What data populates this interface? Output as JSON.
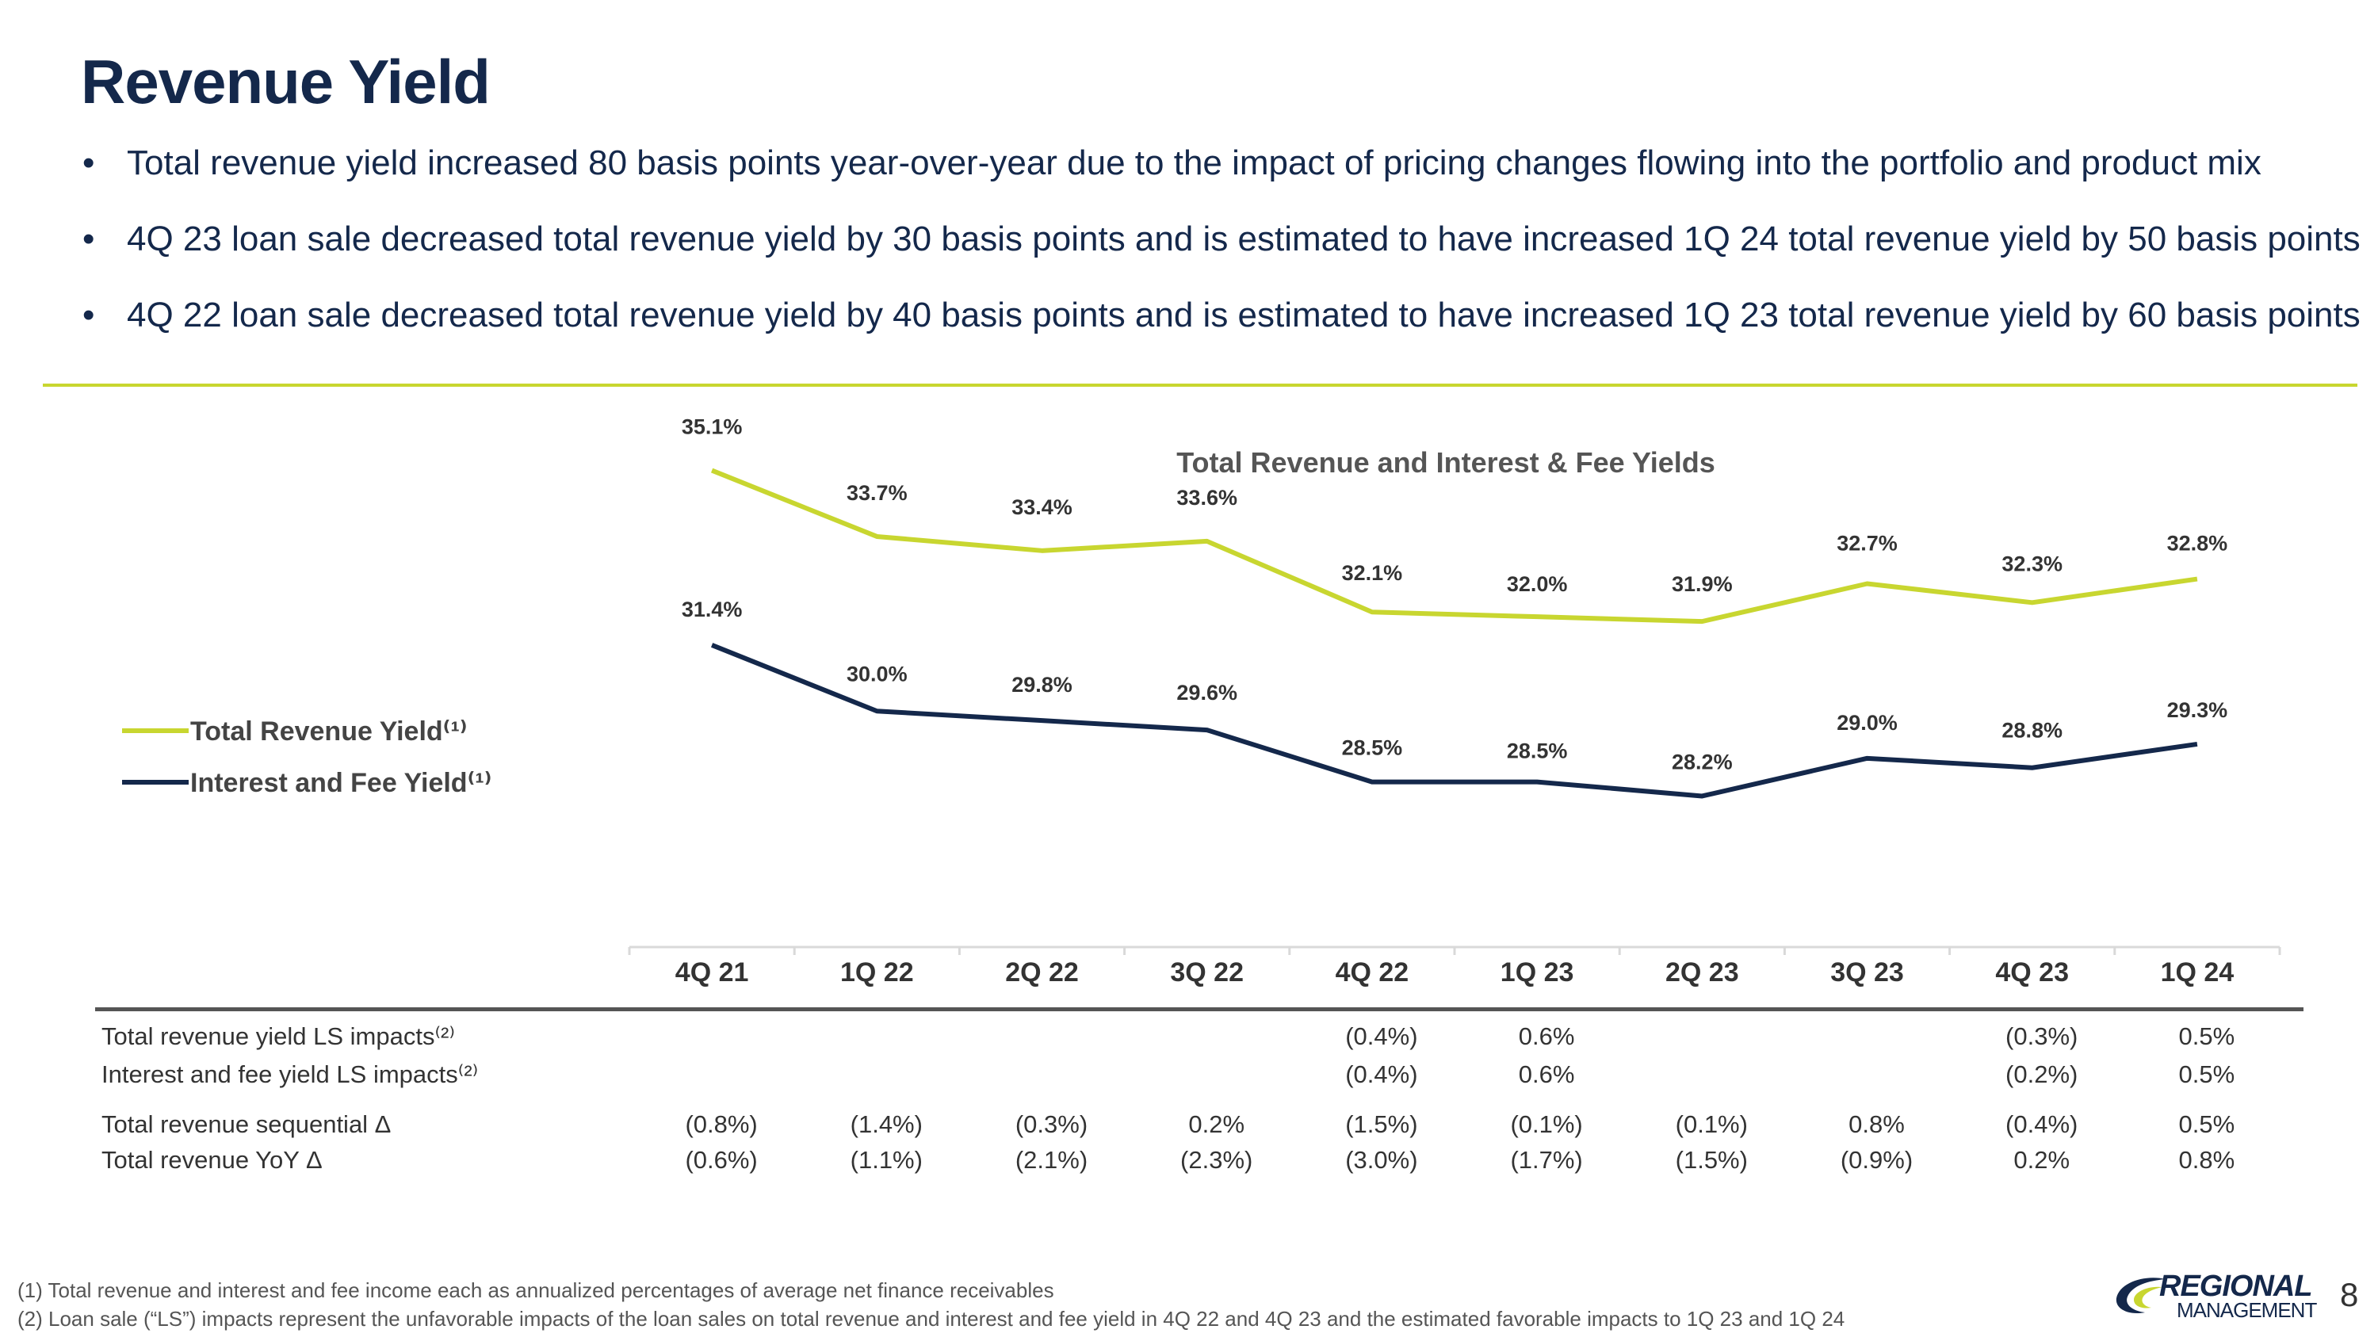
{
  "page": {
    "title": "Revenue Yield",
    "bullets": [
      "Total revenue yield increased 80 basis points year-over-year due to the impact of pricing changes flowing into the portfolio and product mix",
      "4Q 23 loan sale decreased total revenue yield by 30 basis points and is estimated to have increased 1Q 24 total revenue yield by 50 basis points",
      "4Q 22 loan sale decreased total revenue yield by 40 basis points and is estimated to have increased 1Q 23 total revenue yield by 60 basis points"
    ],
    "bullet_symbol": "•"
  },
  "chart_data": {
    "type": "line",
    "title": "Total Revenue and Interest & Fee Yields",
    "categories": [
      "4Q 21",
      "1Q 22",
      "2Q 22",
      "3Q 22",
      "4Q 22",
      "1Q 23",
      "2Q 23",
      "3Q 23",
      "4Q 23",
      "1Q 24"
    ],
    "series": [
      {
        "name": "Total Revenue Yield⁽¹⁾",
        "color": "#c8d630",
        "values": [
          35.1,
          33.7,
          33.4,
          33.6,
          32.1,
          32.0,
          31.9,
          32.7,
          32.3,
          32.8
        ],
        "labels": [
          "35.1%",
          "33.7%",
          "33.4%",
          "33.6%",
          "32.1%",
          "32.0%",
          "31.9%",
          "32.7%",
          "32.3%",
          "32.8%"
        ]
      },
      {
        "name": "Interest and Fee Yield⁽¹⁾",
        "color": "#14284b",
        "values": [
          31.4,
          30.0,
          29.8,
          29.6,
          28.5,
          28.5,
          28.2,
          29.0,
          28.8,
          29.3
        ],
        "labels": [
          "31.4%",
          "30.0%",
          "29.8%",
          "29.6%",
          "28.5%",
          "28.5%",
          "28.2%",
          "29.0%",
          "28.8%",
          "29.3%"
        ]
      }
    ],
    "legend": "left",
    "grid": false,
    "ylim": [
      25.0,
      36.0
    ],
    "xlabel": "",
    "ylabel": ""
  },
  "table": {
    "rows": [
      {
        "label": "Total revenue yield LS impacts⁽²⁾",
        "cells": [
          "",
          "",
          "",
          "",
          "(0.4%)",
          "0.6%",
          "",
          "",
          "(0.3%)",
          "0.5%"
        ]
      },
      {
        "label": "Interest and fee yield LS impacts⁽²⁾",
        "cells": [
          "",
          "",
          "",
          "",
          "(0.4%)",
          "0.6%",
          "",
          "",
          "(0.2%)",
          "0.5%"
        ]
      },
      {
        "label": "Total revenue sequential Δ",
        "cells": [
          "(0.8%)",
          "(1.4%)",
          "(0.3%)",
          "0.2%",
          "(1.5%)",
          "(0.1%)",
          "(0.1%)",
          "0.8%",
          "(0.4%)",
          "0.5%"
        ]
      },
      {
        "label": "Total revenue YoY Δ",
        "cells": [
          "(0.6%)",
          "(1.1%)",
          "(2.1%)",
          "(2.3%)",
          "(3.0%)",
          "(1.7%)",
          "(1.5%)",
          "(0.9%)",
          "0.2%",
          "0.8%"
        ]
      }
    ]
  },
  "footnotes": [
    "(1)  Total revenue and interest and fee income each as annualized percentages of average net finance receivables",
    "(2)  Loan sale (“LS”) impacts represent the unfavorable impacts of the loan sales on total revenue and interest and fee yield in 4Q 22 and 4Q 23 and the estimated favorable impacts to 1Q 23 and 1Q 24"
  ],
  "logo": {
    "line1": "REGIONAL",
    "line2": "MANAGEMENT",
    "mark_icon": "regional-swoosh-icon"
  },
  "page_number": "8",
  "colors": {
    "navy": "#14284b",
    "lime": "#c8d630",
    "gray": "#555555"
  }
}
